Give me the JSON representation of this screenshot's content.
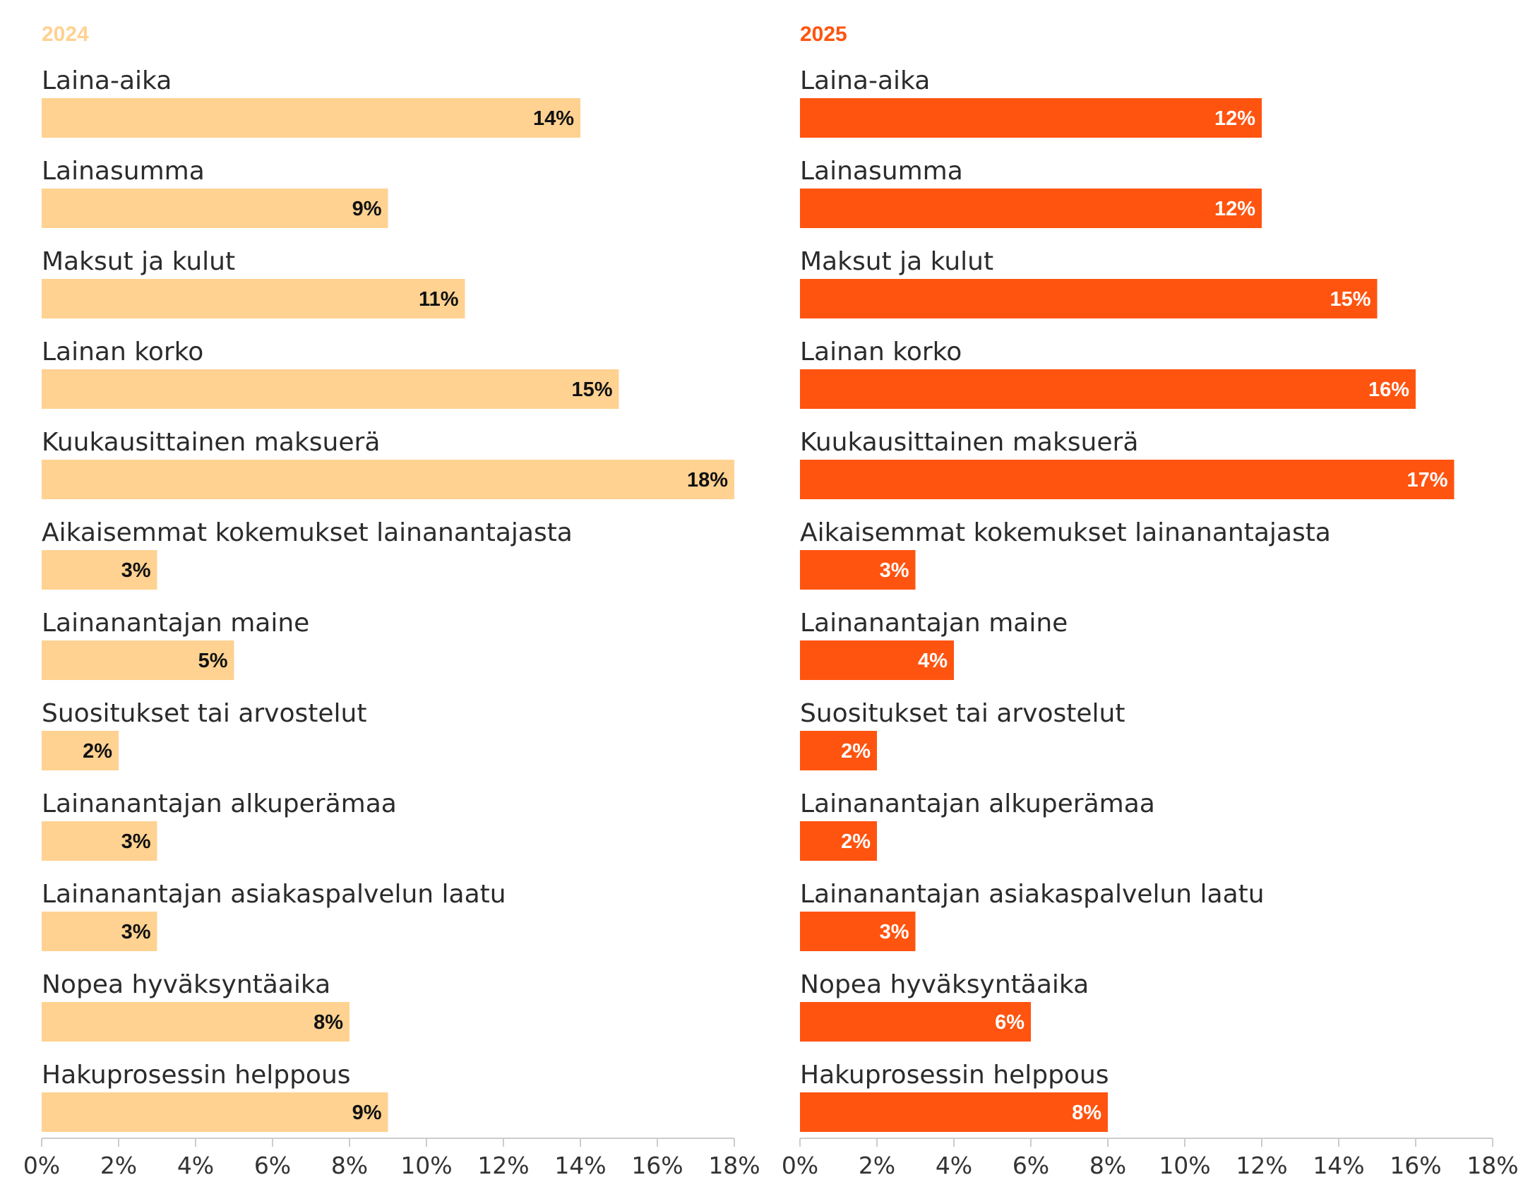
{
  "chart_data": [
    {
      "type": "bar",
      "title": "2024",
      "xlim": [
        0,
        18
      ],
      "x_ticks": [
        "0%",
        "2%",
        "4%",
        "6%",
        "8%",
        "10%",
        "12%",
        "14%",
        "16%",
        "18%"
      ],
      "categories": [
        "Laina-aika",
        "Lainasumma",
        "Maksut ja kulut",
        "Lainan korko",
        "Kuukausittainen maksuerä",
        "Aikaisemmat kokemukset lainanantajasta",
        "Lainanantajan maine",
        "Suositukset tai arvostelut",
        "Lainanantajan alkuperämaa",
        "Lainanantajan asiakaspalvelun laatu",
        "Nopea hyväksyntäaika",
        "Hakuprosessin helppous"
      ],
      "values": [
        14,
        9,
        11,
        15,
        18,
        3,
        5,
        2,
        3,
        3,
        8,
        9
      ],
      "value_labels": [
        "14%",
        "9%",
        "11%",
        "15%",
        "18%",
        "3%",
        "5%",
        "2%",
        "3%",
        "3%",
        "8%",
        "9%"
      ],
      "bar_color": "#ffd291",
      "title_color": "#ffd291",
      "value_label_color": "#111111"
    },
    {
      "type": "bar",
      "title": "2025",
      "xlim": [
        0,
        18
      ],
      "x_ticks": [
        "0%",
        "2%",
        "4%",
        "6%",
        "8%",
        "10%",
        "12%",
        "14%",
        "16%",
        "18%"
      ],
      "categories": [
        "Laina-aika",
        "Lainasumma",
        "Maksut ja kulut",
        "Lainan korko",
        "Kuukausittainen maksuerä",
        "Aikaisemmat kokemukset lainanantajasta",
        "Lainanantajan maine",
        "Suositukset tai arvostelut",
        "Lainanantajan alkuperämaa",
        "Lainanantajan asiakaspalvelun laatu",
        "Nopea hyväksyntäaika",
        "Hakuprosessin helppous"
      ],
      "values": [
        12,
        12,
        15,
        16,
        17,
        3,
        4,
        2,
        2,
        3,
        6,
        8
      ],
      "value_labels": [
        "12%",
        "12%",
        "15%",
        "16%",
        "17%",
        "3%",
        "4%",
        "2%",
        "2%",
        "3%",
        "6%",
        "8%"
      ],
      "bar_color": "#ff5410",
      "title_color": "#ff5410",
      "value_label_color": "#ffffff"
    }
  ],
  "colors": {
    "axis": "#cccccc",
    "text": "#2b2b2b"
  }
}
